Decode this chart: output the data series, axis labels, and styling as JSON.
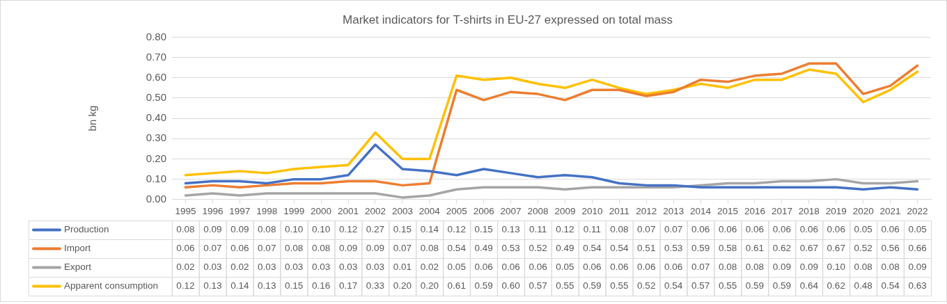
{
  "chart_data": {
    "type": "line",
    "title": "Market indicators for T-shirts in EU-27 expressed on total mass",
    "ylabel": "bn kg",
    "categories": [
      "1995",
      "1996",
      "1997",
      "1998",
      "1999",
      "2000",
      "2001",
      "2002",
      "2003",
      "2004",
      "2005",
      "2006",
      "2007",
      "2008",
      "2009",
      "2010",
      "2011",
      "2012",
      "2013",
      "2014",
      "2015",
      "2016",
      "2017",
      "2018",
      "2019",
      "2020",
      "2021",
      "2022"
    ],
    "series": [
      {
        "name": "Production",
        "color": "#4472c4",
        "values": [
          0.08,
          0.09,
          0.09,
          0.08,
          0.1,
          0.1,
          0.12,
          0.27,
          0.15,
          0.14,
          0.12,
          0.15,
          0.13,
          0.11,
          0.12,
          0.11,
          0.08,
          0.07,
          0.07,
          0.06,
          0.06,
          0.06,
          0.06,
          0.06,
          0.06,
          0.05,
          0.06,
          0.05
        ],
        "value_labels": [
          "0.08",
          "0.09",
          "0.09",
          "0.08",
          "0.10",
          "0.10",
          "0.12",
          "0.27",
          "0.15",
          "0.14",
          "0.12",
          "0.15",
          "0.13",
          "0.11",
          "0.12",
          "0.11",
          "0.08",
          "0.07",
          "0.07",
          "0.06",
          "0.06",
          "0.06",
          "0.06",
          "0.06",
          "0.06",
          "0.05",
          "0.06",
          "0.05"
        ]
      },
      {
        "name": "Import",
        "color": "#ed7d31",
        "values": [
          0.06,
          0.07,
          0.06,
          0.07,
          0.08,
          0.08,
          0.09,
          0.09,
          0.07,
          0.08,
          0.54,
          0.49,
          0.53,
          0.52,
          0.49,
          0.54,
          0.54,
          0.51,
          0.53,
          0.59,
          0.58,
          0.61,
          0.62,
          0.67,
          0.67,
          0.52,
          0.56,
          0.66
        ],
        "value_labels": [
          "0.06",
          "0.07",
          "0.06",
          "0.07",
          "0.08",
          "0.08",
          "0.09",
          "0.09",
          "0.07",
          "0.08",
          "0.54",
          "0.49",
          "0.53",
          "0.52",
          "0.49",
          "0.54",
          "0.54",
          "0.51",
          "0.53",
          "0.59",
          "0.58",
          "0.61",
          "0.62",
          "0.67",
          "0.67",
          "0.52",
          "0.56",
          "0.66"
        ]
      },
      {
        "name": "Export",
        "color": "#a5a5a5",
        "values": [
          0.02,
          0.03,
          0.02,
          0.03,
          0.03,
          0.03,
          0.03,
          0.03,
          0.01,
          0.02,
          0.05,
          0.06,
          0.06,
          0.06,
          0.05,
          0.06,
          0.06,
          0.06,
          0.06,
          0.07,
          0.08,
          0.08,
          0.09,
          0.09,
          0.1,
          0.08,
          0.08,
          0.09
        ],
        "value_labels": [
          "0.02",
          "0.03",
          "0.02",
          "0.03",
          "0.03",
          "0.03",
          "0.03",
          "0.03",
          "0.01",
          "0.02",
          "0.05",
          "0.06",
          "0.06",
          "0.06",
          "0.05",
          "0.06",
          "0.06",
          "0.06",
          "0.06",
          "0.07",
          "0.08",
          "0.08",
          "0.09",
          "0.09",
          "0.10",
          "0.08",
          "0.08",
          "0.09"
        ]
      },
      {
        "name": "Apparent consumption",
        "color": "#ffc000",
        "values": [
          0.12,
          0.13,
          0.14,
          0.13,
          0.15,
          0.16,
          0.17,
          0.33,
          0.2,
          0.2,
          0.61,
          0.59,
          0.6,
          0.57,
          0.55,
          0.59,
          0.55,
          0.52,
          0.54,
          0.57,
          0.55,
          0.59,
          0.59,
          0.64,
          0.62,
          0.48,
          0.54,
          0.63
        ],
        "value_labels": [
          "0.12",
          "0.13",
          "0.14",
          "0.13",
          "0.15",
          "0.16",
          "0.17",
          "0.33",
          "0.20",
          "0.20",
          "0.61",
          "0.59",
          "0.60",
          "0.57",
          "0.55",
          "0.59",
          "0.55",
          "0.52",
          "0.54",
          "0.57",
          "0.55",
          "0.59",
          "0.59",
          "0.64",
          "0.62",
          "0.48",
          "0.54",
          "0.63"
        ]
      }
    ],
    "ylim": [
      0,
      0.8
    ],
    "yticks": [
      {
        "value": 0,
        "label": "0.00"
      },
      {
        "value": 0.1,
        "label": "0.10"
      },
      {
        "value": 0.2,
        "label": "0.20"
      },
      {
        "value": 0.3,
        "label": "0.30"
      },
      {
        "value": 0.4,
        "label": "0.40"
      },
      {
        "value": 0.5,
        "label": "0.50"
      },
      {
        "value": 0.6,
        "label": "0.60"
      },
      {
        "value": 0.7,
        "label": "0.70"
      },
      {
        "value": 0.8,
        "label": "0.80"
      }
    ],
    "grid": "y",
    "legend": "bottom",
    "marker": "none",
    "line_style": "solid"
  }
}
